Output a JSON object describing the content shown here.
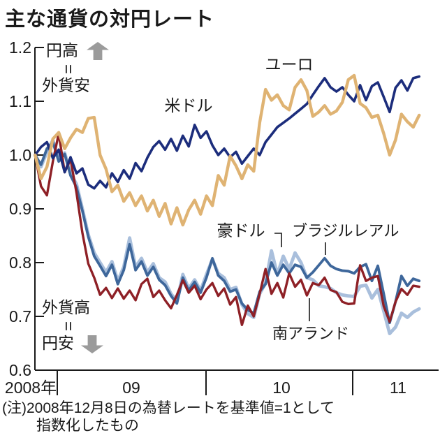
{
  "title": "主な通貨の対円レート",
  "annotations": {
    "top": {
      "line1": "円高",
      "equals": "=",
      "line2": "外貨安"
    },
    "bottom": {
      "line1": "外貨高",
      "equals": "=",
      "line2": "円安"
    }
  },
  "footnote": {
    "line1": "(注)2008年12月8日の為替レートを基準値=1として",
    "line2": "指数化したもの"
  },
  "colors": {
    "axis": "#1a1a1a",
    "arrow": "#9b9b9b",
    "text": "#1a1a1a"
  },
  "chart_data": {
    "type": "line",
    "title": "主な通貨の対円レート",
    "xlabel": "",
    "ylabel": "",
    "ylim": [
      0.6,
      1.2
    ],
    "yticks": [
      1.2,
      1.1,
      1.0,
      0.9,
      0.8,
      0.7,
      0.6
    ],
    "ytick_labels": [
      "1.2",
      "1.1",
      "1.0",
      "0.9",
      "0.8",
      "0.7",
      "0.6"
    ],
    "xtick_labels": [
      "2008年",
      "09",
      "10",
      "11"
    ],
    "baseline_note": "2008年12月8日の為替レート=1",
    "grid": false,
    "legend_position": "inline-callouts",
    "x_start_year": 2008.85,
    "x_step_years": 0.04,
    "series": [
      {
        "name": "米ドル",
        "color": "#1c2d7c",
        "width": 3.6,
        "values": [
          1.0,
          1.015,
          1.024,
          0.994,
          1.01,
          0.968,
          0.996,
          0.966,
          0.975,
          0.945,
          0.938,
          0.952,
          0.94,
          0.966,
          0.95,
          0.972,
          0.956,
          0.985,
          0.97,
          0.995,
          1.015,
          1.026,
          1.01,
          1.03,
          1.008,
          1.036,
          1.016,
          1.056,
          1.032,
          1.044,
          1.018,
          1.0,
          1.012,
          0.996,
          1.006,
          0.984,
          0.998,
          1.012,
          1.0,
          1.024,
          1.038,
          1.052,
          1.06,
          1.068,
          1.077,
          1.086,
          1.095,
          1.112,
          1.128,
          1.143,
          1.126,
          1.118,
          1.126,
          1.112,
          1.1,
          1.13,
          1.102,
          1.128,
          1.135,
          1.108,
          1.08,
          1.125,
          1.139,
          1.12,
          1.143,
          1.146
        ]
      },
      {
        "name": "ユーロ",
        "color": "#dfb373",
        "width": 4.4,
        "values": [
          1.0,
          0.956,
          0.978,
          1.03,
          1.042,
          1.012,
          1.032,
          1.048,
          1.042,
          1.068,
          1.07,
          1.0,
          0.974,
          0.932,
          0.944,
          0.914,
          0.93,
          0.906,
          0.924,
          0.896,
          0.916,
          0.886,
          0.91,
          0.872,
          0.902,
          0.87,
          0.898,
          0.916,
          0.89,
          0.924,
          0.906,
          0.962,
          0.944,
          0.998,
          0.98,
          0.956,
          0.982,
          0.97,
          1.06,
          1.122,
          1.102,
          1.112,
          1.092,
          1.084,
          1.126,
          1.14,
          1.12,
          1.072,
          1.08,
          1.092,
          1.076,
          1.082,
          1.098,
          1.14,
          1.148,
          1.096,
          1.088,
          1.07,
          1.074,
          1.04,
          1.0,
          1.028,
          1.076,
          1.062,
          1.052,
          1.074
        ]
      },
      {
        "name": "豪ドル",
        "color": "#a9bfdc",
        "width": 4.8,
        "values": [
          1.0,
          0.978,
          1.006,
          1.028,
          0.99,
          1.004,
          0.966,
          0.946,
          0.9,
          0.852,
          0.818,
          0.8,
          0.782,
          0.802,
          0.766,
          0.792,
          0.846,
          0.792,
          0.808,
          0.782,
          0.798,
          0.772,
          0.764,
          0.742,
          0.728,
          0.778,
          0.752,
          0.768,
          0.748,
          0.778,
          0.806,
          0.78,
          0.772,
          0.75,
          0.754,
          0.722,
          0.705,
          0.698,
          0.742,
          0.762,
          0.822,
          0.778,
          0.812,
          0.788,
          0.818,
          0.8,
          0.772,
          0.768,
          0.757,
          0.755,
          0.752,
          0.744,
          0.74,
          0.738,
          0.737,
          0.756,
          0.758,
          0.734,
          0.75,
          0.71,
          0.668,
          0.68,
          0.706,
          0.698,
          0.708,
          0.714
        ]
      },
      {
        "name": "ブラジルレアル",
        "color": "#3e679b",
        "width": 3.8,
        "values": [
          1.0,
          0.982,
          1.012,
          1.024,
          0.988,
          1.002,
          0.962,
          0.94,
          0.896,
          0.848,
          0.812,
          0.794,
          0.775,
          0.796,
          0.76,
          0.786,
          0.834,
          0.786,
          0.802,
          0.776,
          0.792,
          0.768,
          0.758,
          0.738,
          0.724,
          0.772,
          0.748,
          0.764,
          0.744,
          0.772,
          0.808,
          0.776,
          0.766,
          0.746,
          0.75,
          0.724,
          0.712,
          0.706,
          0.746,
          0.76,
          0.8,
          0.776,
          0.796,
          0.78,
          0.796,
          0.792,
          0.772,
          0.782,
          0.795,
          0.808,
          0.794,
          0.788,
          0.785,
          0.784,
          0.78,
          0.792,
          0.797,
          0.766,
          0.794,
          0.742,
          0.688,
          0.727,
          0.775,
          0.757,
          0.77,
          0.766
        ]
      },
      {
        "name": "南アランド",
        "color": "#8e2026",
        "width": 3.4,
        "values": [
          1.0,
          0.942,
          0.925,
          0.988,
          1.04,
          0.968,
          0.992,
          0.93,
          0.855,
          0.798,
          0.772,
          0.74,
          0.753,
          0.734,
          0.752,
          0.733,
          0.748,
          0.73,
          0.76,
          0.77,
          0.736,
          0.748,
          0.73,
          0.715,
          0.74,
          0.767,
          0.744,
          0.757,
          0.732,
          0.75,
          0.762,
          0.738,
          0.752,
          0.722,
          0.736,
          0.684,
          0.72,
          0.7,
          0.742,
          0.788,
          0.742,
          0.762,
          0.735,
          0.78,
          0.755,
          0.768,
          0.739,
          0.762,
          0.758,
          0.772,
          0.749,
          0.745,
          0.727,
          0.723,
          0.724,
          0.795,
          0.766,
          0.772,
          0.775,
          0.719,
          0.69,
          0.727,
          0.751,
          0.74,
          0.757,
          0.755
        ]
      }
    ]
  }
}
